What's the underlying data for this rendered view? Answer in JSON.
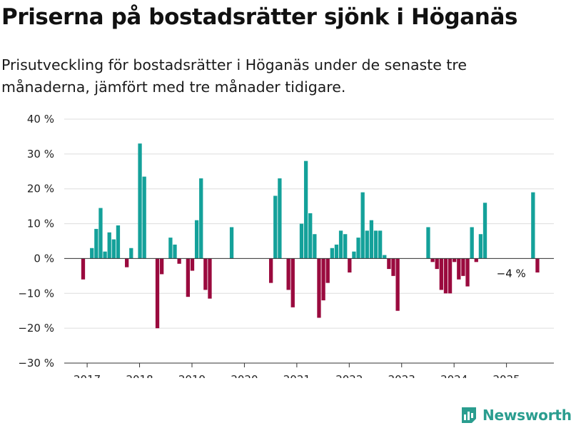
{
  "title": "Priserna på bostadsrätter sjönk i Höganäs",
  "subtitle": "Prisutveckling för bostadsrätter i Höganäs under de senaste tre månaderna, jämfört med tre månader tidigare.",
  "brand": "Newsworthy",
  "colors": {
    "positive": "#14a19a",
    "negative": "#9a0a3e",
    "grid": "#dddddd",
    "axis": "#333333"
  },
  "chart_data": {
    "type": "bar",
    "xlabel": "",
    "ylabel": "",
    "ylim": [
      -30,
      40
    ],
    "yticks": [
      40,
      30,
      20,
      10,
      0,
      -10,
      -20,
      -30
    ],
    "ytick_labels": [
      "40 %",
      "30 %",
      "20 %",
      "10 %",
      "0 %",
      "−10 %",
      "−20 %",
      "−30 %"
    ],
    "xticks": [
      "2017",
      "2018",
      "2019",
      "2020",
      "2021",
      "2022",
      "2023",
      "2024",
      "2025"
    ],
    "grid": true,
    "annotation": {
      "label": "−4 %",
      "index": 102
    },
    "start": "2016-08",
    "frequency": "monthly",
    "values": [
      null,
      null,
      null,
      null,
      -6,
      null,
      3,
      8.5,
      14.5,
      2,
      7.5,
      5.5,
      9.5,
      null,
      -2.5,
      3,
      null,
      33,
      23.5,
      null,
      null,
      -20,
      -4.5,
      null,
      6,
      4,
      -1.5,
      null,
      -11,
      -3.5,
      11,
      23,
      -9,
      -11.5,
      null,
      null,
      null,
      null,
      9,
      null,
      null,
      null,
      null,
      null,
      null,
      null,
      null,
      -7,
      18,
      23,
      null,
      -9,
      -14,
      null,
      10,
      28,
      13,
      7,
      -17,
      -12,
      -7,
      3,
      4,
      8,
      7,
      -4,
      2,
      6,
      19,
      8,
      11,
      8,
      8,
      1,
      -3,
      -5,
      -15,
      null,
      null,
      null,
      null,
      null,
      null,
      9,
      -1,
      -3,
      -9,
      -10,
      -10,
      -1,
      -6,
      -5,
      -8,
      9,
      -1,
      7,
      16,
      null,
      null,
      null,
      null,
      null,
      null,
      null,
      null,
      null,
      null,
      19,
      -4
    ]
  }
}
